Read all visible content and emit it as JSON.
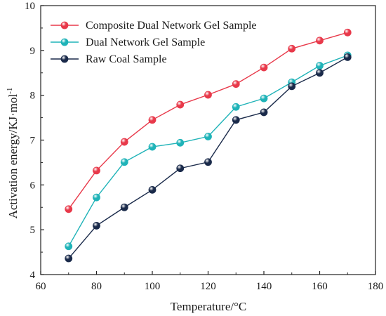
{
  "chart_data": {
    "type": "line",
    "xlabel": "Temperature/°C",
    "ylabel": "Activation energy/KJ·mol",
    "ylabel_sup": "-1",
    "xlim": [
      60,
      180
    ],
    "ylim": [
      4,
      10
    ],
    "xticks": [
      60,
      80,
      100,
      120,
      140,
      160,
      180
    ],
    "yticks": [
      4,
      5,
      6,
      7,
      8,
      9,
      10
    ],
    "grid": false,
    "legend_position": "top-left",
    "x": [
      70,
      80,
      90,
      100,
      110,
      120,
      130,
      140,
      150,
      160,
      170
    ],
    "series": [
      {
        "name": "Composite Dual Network Gel Sample",
        "color": "#e8394a",
        "values": [
          5.46,
          6.32,
          6.96,
          7.45,
          7.79,
          8.01,
          8.25,
          8.62,
          9.04,
          9.22,
          9.4
        ]
      },
      {
        "name": "Dual Network Gel Sample",
        "color": "#1fb3b8",
        "values": [
          4.63,
          5.72,
          6.51,
          6.85,
          6.94,
          7.08,
          7.74,
          7.93,
          8.29,
          8.66,
          8.89
        ]
      },
      {
        "name": "Raw Coal Sample",
        "color": "#1a2a4a",
        "values": [
          4.36,
          5.09,
          5.5,
          5.89,
          6.37,
          6.51,
          7.45,
          7.62,
          8.2,
          8.5,
          8.85
        ]
      }
    ]
  }
}
